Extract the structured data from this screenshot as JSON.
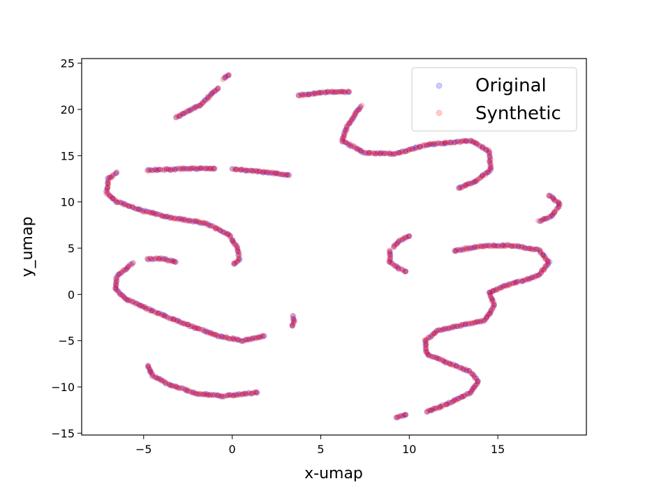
{
  "chart_data": {
    "type": "scatter",
    "title": "",
    "xlabel": "x-umap",
    "ylabel": "y_umap",
    "xlim": [
      -8.5,
      20.0
    ],
    "ylim": [
      -15.2,
      25.5
    ],
    "x_ticks": [
      -5,
      0,
      5,
      10,
      15
    ],
    "y_ticks": [
      -15,
      -10,
      -5,
      0,
      5,
      10,
      15,
      20,
      25
    ],
    "grid": false,
    "legend_position": "top-right",
    "series": [
      {
        "name": "Original",
        "color": "#0000ff",
        "alpha": 0.2,
        "strokes": [
          [
            [
              -3.2,
              19.1
            ],
            [
              -1.8,
              20.5
            ],
            [
              -0.8,
              22.3
            ]
          ],
          [
            [
              -0.5,
              23.3
            ],
            [
              -0.2,
              23.7
            ]
          ],
          [
            [
              3.7,
              21.5
            ],
            [
              5.3,
              21.9
            ],
            [
              6.6,
              21.9
            ]
          ],
          [
            [
              7.3,
              20.4
            ],
            [
              6.5,
              18.2
            ],
            [
              6.2,
              16.6
            ],
            [
              7.5,
              15.3
            ],
            [
              9.2,
              15.2
            ],
            [
              11.0,
              16.2
            ],
            [
              13.5,
              16.6
            ],
            [
              14.5,
              15.5
            ],
            [
              14.6,
              13.5
            ],
            [
              13.8,
              12.3
            ],
            [
              12.8,
              11.5
            ]
          ],
          [
            [
              -4.8,
              13.4
            ],
            [
              -2.5,
              13.6
            ],
            [
              -1.0,
              13.6
            ]
          ],
          [
            [
              0.0,
              13.6
            ],
            [
              1.5,
              13.3
            ],
            [
              3.2,
              12.9
            ]
          ],
          [
            [
              -6.5,
              13.2
            ],
            [
              -7.0,
              12.5
            ],
            [
              -7.1,
              11.0
            ],
            [
              -6.5,
              10.0
            ],
            [
              -5.0,
              9.0
            ],
            [
              -3.5,
              8.3
            ],
            [
              -1.5,
              7.7
            ],
            [
              -0.2,
              6.5
            ],
            [
              0.3,
              5.0
            ],
            [
              0.4,
              3.8
            ],
            [
              0.1,
              3.3
            ]
          ],
          [
            [
              -4.8,
              3.8
            ],
            [
              -4.0,
              3.9
            ],
            [
              -3.2,
              3.5
            ]
          ],
          [
            [
              -5.6,
              3.4
            ],
            [
              -6.5,
              2.0
            ],
            [
              -6.6,
              0.6
            ],
            [
              -6.0,
              -0.5
            ],
            [
              -4.5,
              -1.8
            ],
            [
              -2.5,
              -3.3
            ],
            [
              -0.8,
              -4.5
            ],
            [
              0.6,
              -5.0
            ],
            [
              1.8,
              -4.5
            ]
          ],
          [
            [
              3.4,
              -2.3
            ],
            [
              3.5,
              -2.9
            ],
            [
              3.4,
              -3.4
            ]
          ],
          [
            [
              -4.8,
              -7.6
            ],
            [
              -4.5,
              -8.8
            ],
            [
              -3.5,
              -9.8
            ],
            [
              -2.0,
              -10.7
            ],
            [
              -0.5,
              -11.0
            ],
            [
              1.4,
              -10.6
            ]
          ],
          [
            [
              9.1,
              5.0
            ],
            [
              9.4,
              5.8
            ],
            [
              10.0,
              6.3
            ]
          ],
          [
            [
              8.9,
              4.8
            ],
            [
              8.9,
              3.5
            ],
            [
              9.4,
              2.8
            ],
            [
              9.8,
              2.5
            ]
          ],
          [
            [
              17.3,
              7.9
            ],
            [
              18.1,
              8.5
            ],
            [
              18.5,
              9.8
            ],
            [
              17.9,
              10.7
            ]
          ],
          [
            [
              12.5,
              4.7
            ],
            [
              14.0,
              5.2
            ],
            [
              15.8,
              5.3
            ],
            [
              17.3,
              4.8
            ],
            [
              17.9,
              3.5
            ],
            [
              17.3,
              2.0
            ],
            [
              15.5,
              1.0
            ],
            [
              14.5,
              0.2
            ],
            [
              14.8,
              -1.2
            ],
            [
              14.3,
              -2.8
            ],
            [
              12.8,
              -3.4
            ],
            [
              11.6,
              -3.9
            ],
            [
              10.9,
              -5.0
            ],
            [
              11.0,
              -6.5
            ],
            [
              12.3,
              -7.5
            ],
            [
              13.4,
              -8.3
            ],
            [
              13.9,
              -9.4
            ],
            [
              13.4,
              -10.7
            ],
            [
              12.2,
              -11.8
            ],
            [
              11.0,
              -12.7
            ]
          ],
          [
            [
              9.2,
              -13.3
            ],
            [
              9.8,
              -13.0
            ]
          ]
        ]
      },
      {
        "name": "Synthetic",
        "color": "#ff0000",
        "alpha": 0.2,
        "strokes": [
          [
            [
              -3.2,
              19.1
            ],
            [
              -1.8,
              20.5
            ],
            [
              -0.8,
              22.3
            ]
          ],
          [
            [
              -0.5,
              23.3
            ],
            [
              -0.2,
              23.7
            ]
          ],
          [
            [
              3.7,
              21.5
            ],
            [
              5.3,
              21.9
            ],
            [
              6.6,
              21.9
            ]
          ],
          [
            [
              7.3,
              20.4
            ],
            [
              6.5,
              18.2
            ],
            [
              6.2,
              16.6
            ],
            [
              7.5,
              15.3
            ],
            [
              9.2,
              15.2
            ],
            [
              11.0,
              16.2
            ],
            [
              13.5,
              16.6
            ],
            [
              14.5,
              15.5
            ],
            [
              14.6,
              13.5
            ],
            [
              13.8,
              12.3
            ],
            [
              12.8,
              11.5
            ]
          ],
          [
            [
              -4.8,
              13.4
            ],
            [
              -2.5,
              13.6
            ],
            [
              -1.0,
              13.6
            ]
          ],
          [
            [
              0.0,
              13.6
            ],
            [
              1.5,
              13.3
            ],
            [
              3.2,
              12.9
            ]
          ],
          [
            [
              -6.5,
              13.2
            ],
            [
              -7.0,
              12.5
            ],
            [
              -7.1,
              11.0
            ],
            [
              -6.5,
              10.0
            ],
            [
              -5.0,
              9.0
            ],
            [
              -3.5,
              8.3
            ],
            [
              -1.5,
              7.7
            ],
            [
              -0.2,
              6.5
            ],
            [
              0.3,
              5.0
            ],
            [
              0.4,
              3.8
            ],
            [
              0.1,
              3.3
            ]
          ],
          [
            [
              -4.8,
              3.8
            ],
            [
              -4.0,
              3.9
            ],
            [
              -3.2,
              3.5
            ]
          ],
          [
            [
              -5.6,
              3.4
            ],
            [
              -6.5,
              2.0
            ],
            [
              -6.6,
              0.6
            ],
            [
              -6.0,
              -0.5
            ],
            [
              -4.5,
              -1.8
            ],
            [
              -2.5,
              -3.3
            ],
            [
              -0.8,
              -4.5
            ],
            [
              0.6,
              -5.0
            ],
            [
              1.8,
              -4.5
            ]
          ],
          [
            [
              3.4,
              -2.3
            ],
            [
              3.5,
              -2.9
            ],
            [
              3.4,
              -3.4
            ]
          ],
          [
            [
              -4.8,
              -7.6
            ],
            [
              -4.5,
              -8.8
            ],
            [
              -3.5,
              -9.8
            ],
            [
              -2.0,
              -10.7
            ],
            [
              -0.5,
              -11.0
            ],
            [
              1.4,
              -10.6
            ]
          ],
          [
            [
              9.1,
              5.0
            ],
            [
              9.4,
              5.8
            ],
            [
              10.0,
              6.3
            ]
          ],
          [
            [
              8.9,
              4.8
            ],
            [
              8.9,
              3.5
            ],
            [
              9.4,
              2.8
            ],
            [
              9.8,
              2.5
            ]
          ],
          [
            [
              17.3,
              7.9
            ],
            [
              18.1,
              8.5
            ],
            [
              18.5,
              9.8
            ],
            [
              17.9,
              10.7
            ]
          ],
          [
            [
              12.5,
              4.7
            ],
            [
              14.0,
              5.2
            ],
            [
              15.8,
              5.3
            ],
            [
              17.3,
              4.8
            ],
            [
              17.9,
              3.5
            ],
            [
              17.3,
              2.0
            ],
            [
              15.5,
              1.0
            ],
            [
              14.5,
              0.2
            ],
            [
              14.8,
              -1.2
            ],
            [
              14.3,
              -2.8
            ],
            [
              12.8,
              -3.4
            ],
            [
              11.6,
              -3.9
            ],
            [
              10.9,
              -5.0
            ],
            [
              11.0,
              -6.5
            ],
            [
              12.3,
              -7.5
            ],
            [
              13.4,
              -8.3
            ],
            [
              13.9,
              -9.4
            ],
            [
              13.4,
              -10.7
            ],
            [
              12.2,
              -11.8
            ],
            [
              11.0,
              -12.7
            ]
          ],
          [
            [
              9.2,
              -13.3
            ],
            [
              9.8,
              -13.0
            ]
          ]
        ]
      }
    ]
  }
}
